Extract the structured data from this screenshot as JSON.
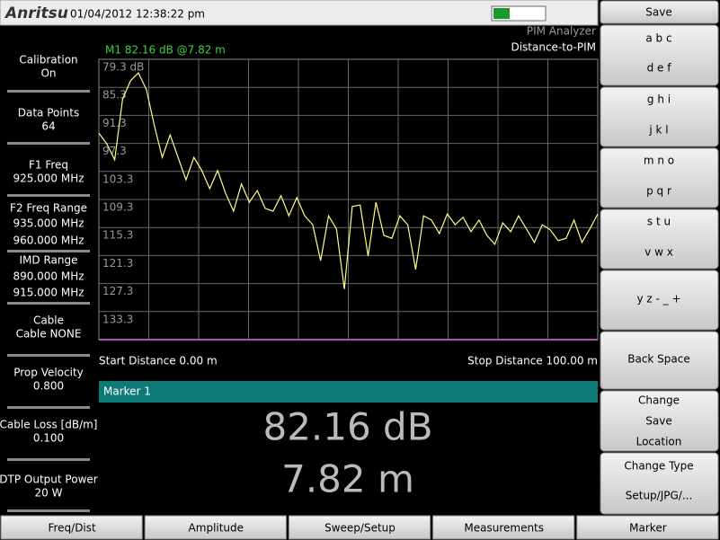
{
  "header": {
    "logo": "Anritsu",
    "datetime": "01/04/2012 12:38:22 pm"
  },
  "left_panel": [
    {
      "lines": [
        "Calibration",
        "On"
      ]
    },
    {
      "lines": [
        "Data Points",
        "64"
      ]
    },
    {
      "lines": [
        "F1 Freq",
        "925.000 MHz"
      ]
    },
    {
      "lines": [
        "F2 Freq Range",
        "935.000 MHz",
        "960.000 MHz"
      ]
    },
    {
      "lines": [
        "IMD Range",
        "890.000 MHz",
        "915.000 MHz"
      ]
    },
    {
      "lines": [
        "Cable",
        "Cable NONE"
      ]
    },
    {
      "lines": [
        "Prop Velocity",
        "0.800"
      ]
    },
    {
      "lines": [
        "Cable Loss [dB/m]",
        "0.100"
      ]
    },
    {
      "lines": [
        "DTP Output Power",
        "20 W"
      ]
    }
  ],
  "chart": {
    "type": "line",
    "title": "PIM Analyzer",
    "subtitle": "Distance-to-PIM",
    "marker_label": "M1 82.16 dB @7.82 m",
    "start_label": "Start Distance 0.00 m",
    "stop_label": "Stop Distance 100.00 m",
    "color": "#ffff88",
    "grid": true,
    "ylim": [
      139.3,
      79.3
    ],
    "yticks": [
      {
        "value": 79.3,
        "label": "79.3 dB"
      },
      85.3,
      91.3,
      97.3,
      103.3,
      109.3,
      115.3,
      121.3,
      127.3,
      133.3
    ],
    "values": [
      95.1,
      97.4,
      100.8,
      87.8,
      83.9,
      82.2,
      85.8,
      93.5,
      100.3,
      95.5,
      100.3,
      105.1,
      100.3,
      103.1,
      107.0,
      103.1,
      108.0,
      111.8,
      106.0,
      109.9,
      107.4,
      111.2,
      111.8,
      108.5,
      112.8,
      108.9,
      112.8,
      114.7,
      122.4,
      112.8,
      115.6,
      128.5,
      110.8,
      110.5,
      121.4,
      109.9,
      117.0,
      117.6,
      112.8,
      114.7,
      124.3,
      112.8,
      113.7,
      116.6,
      112.4,
      114.7,
      113.1,
      116.2,
      113.7,
      117.0,
      118.9,
      114.3,
      116.2,
      112.8,
      115.6,
      118.5,
      114.7,
      115.8,
      118.1,
      117.6,
      113.7,
      118.5,
      115.6,
      112.4
    ]
  },
  "marker_panel": {
    "title": "Marker 1",
    "readouts": [
      "82.16 dB",
      "7.82 m"
    ]
  },
  "softkeys": {
    "title": "Save",
    "buttons": [
      [
        "a b c",
        "d e f"
      ],
      [
        "g h i",
        "j k l"
      ],
      [
        "m n o",
        "p q r"
      ],
      [
        "s t u",
        "v w x"
      ],
      [
        "y z - _ +"
      ],
      [
        "Back Space"
      ],
      [
        "Change",
        "Save",
        "Location"
      ],
      [
        "Change Type",
        "Setup/JPG/..."
      ]
    ]
  },
  "tabs": [
    "Freq/Dist",
    "Amplitude",
    "Sweep/Setup",
    "Measurements",
    "Marker"
  ]
}
